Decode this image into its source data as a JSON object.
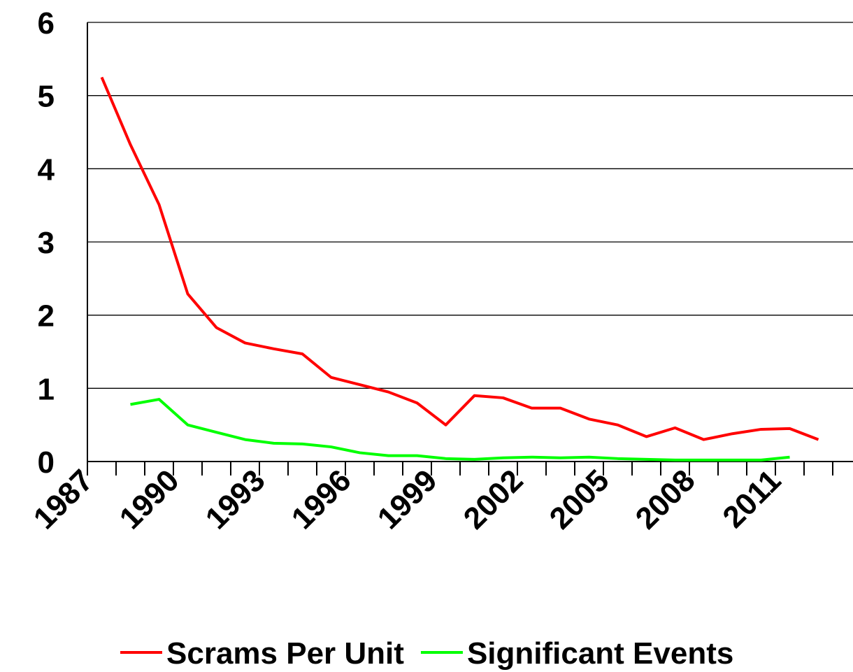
{
  "chart_data": {
    "type": "line",
    "categories": [
      "1987",
      null,
      null,
      "1990",
      null,
      null,
      "1993",
      null,
      null,
      "1996",
      null,
      null,
      "1999",
      null,
      null,
      "2002",
      null,
      null,
      "2005",
      null,
      null,
      "2008",
      null,
      null,
      "2011",
      null
    ],
    "series": [
      {
        "name": "Scrams Per Unit",
        "color": "#ff0000",
        "values": [
          5.25,
          4.33,
          3.51,
          2.29,
          1.83,
          1.62,
          1.54,
          1.47,
          1.15,
          1.05,
          0.95,
          0.8,
          0.5,
          0.9,
          0.87,
          0.73,
          0.73,
          0.58,
          0.5,
          0.34,
          0.46,
          0.3,
          0.38,
          0.44,
          0.45,
          0.3
        ]
      },
      {
        "name": "Significant Events",
        "color": "#00ff00",
        "values": [
          null,
          0.78,
          0.85,
          0.5,
          0.4,
          0.3,
          0.25,
          0.24,
          0.2,
          0.12,
          0.08,
          0.08,
          0.04,
          0.03,
          0.05,
          0.06,
          0.05,
          0.06,
          0.04,
          0.03,
          0.02,
          0.02,
          0.02,
          0.02,
          0.06,
          null
        ]
      }
    ],
    "ylim": [
      0,
      6
    ],
    "yticks": [
      0,
      1,
      2,
      3,
      4,
      5,
      6
    ],
    "grid": true,
    "legend": "bottom"
  }
}
